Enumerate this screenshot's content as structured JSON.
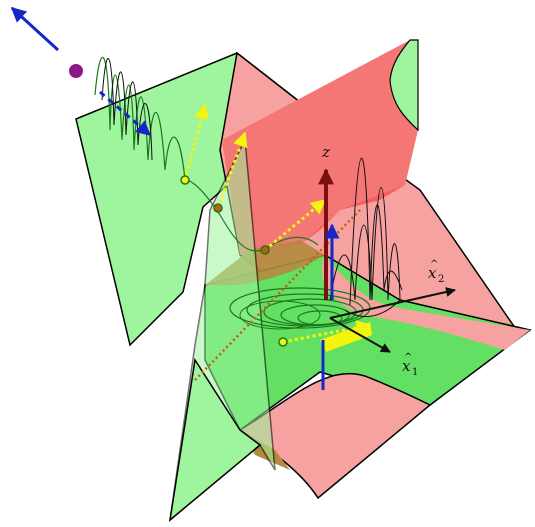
{
  "colors": {
    "green_light": "#9ef59e",
    "green_mid": "#63e063",
    "pink_light": "#f6a2a0",
    "red_mid": "#f35f5f",
    "brown_overlap": "#b5893f",
    "outline": "#000000",
    "curve_green": "#1a7a1a",
    "blue_arrow": "#1428c8",
    "yellow_arrow": "#f4f40c",
    "dark_red_arrow": "#7a1010",
    "purple_dot": "#8a1a8a",
    "dotted_orange": "#c85a12"
  },
  "axes": {
    "z": {
      "text": "z"
    },
    "x1": {
      "base": "x",
      "hat": "^",
      "sub": "1"
    },
    "x2": {
      "base": "x",
      "hat": "^",
      "sub": "2"
    }
  }
}
